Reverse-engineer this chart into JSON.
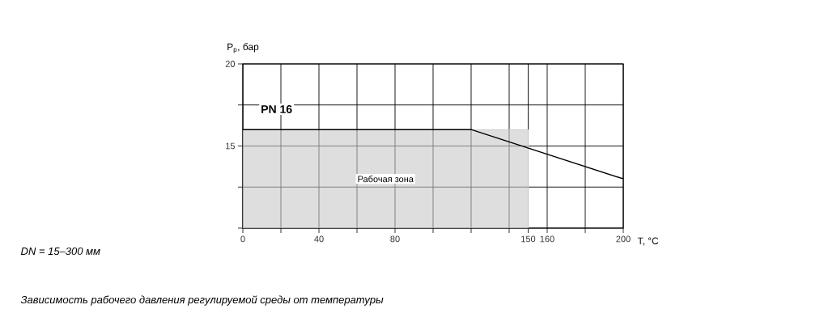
{
  "chart_data": {
    "type": "line",
    "xlabel": "T, °C",
    "ylabel": "P$_{р}$, бар",
    "annotations": [
      "DN = 15–300 мм",
      "Зависимость рабочего давления регулируемой среды от температуры"
    ],
    "xlim": [
      0,
      200
    ],
    "ylim": [
      10,
      20
    ],
    "xticks": [
      0,
      {
        "value": 20,
        "label": null
      },
      40,
      {
        "value": 60,
        "label": null
      },
      80,
      {
        "value": 100,
        "label": null
      },
      {
        "value": 120,
        "label": null
      },
      {
        "value": 140,
        "label": null
      },
      150,
      160,
      {
        "value": 180,
        "label": null
      },
      200
    ],
    "yticks": [
      {
        "value": 10,
        "label": null
      },
      {
        "value": 12.5,
        "label": null
      },
      15,
      {
        "value": 17.5,
        "label": null
      },
      20
    ],
    "grid": true,
    "series": [
      {
        "name": "PN 16",
        "color": "#000000",
        "x": [
          0,
          120,
          200
        ],
        "values": [
          16,
          16,
          13
        ]
      },
      {
        "name": "Рабочая зона",
        "type": "area",
        "color": "#c8c8c8",
        "x": [
          0,
          150
        ],
        "values": [
          16,
          16
        ]
      }
    ]
  }
}
